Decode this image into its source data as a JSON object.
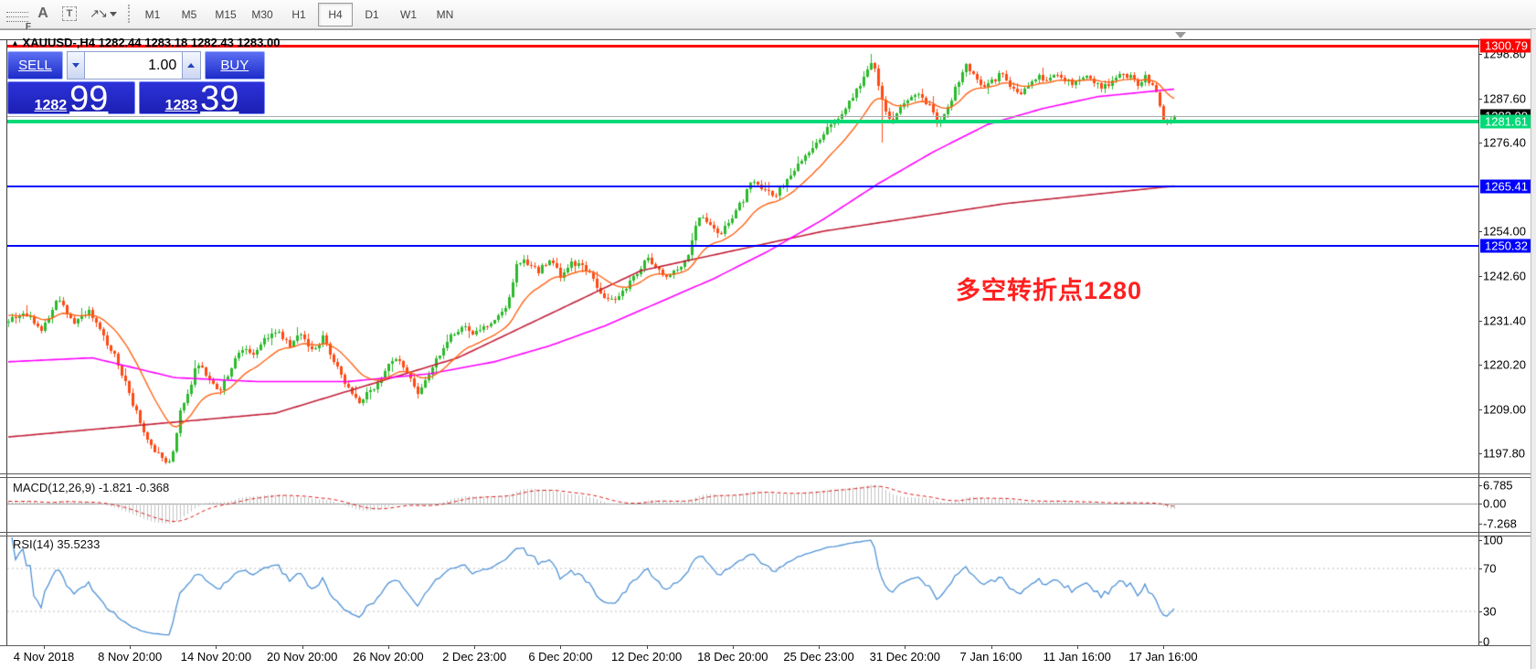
{
  "toolbar": {
    "tools": [
      {
        "name": "fibonacci",
        "glyph": "F"
      },
      {
        "name": "text",
        "glyph": "A"
      },
      {
        "name": "label",
        "glyph": "T"
      },
      {
        "name": "arrows",
        "glyph": "↗↘"
      }
    ],
    "timeframes": [
      "M1",
      "M5",
      "M15",
      "M30",
      "H1",
      "H4",
      "D1",
      "W1",
      "MN"
    ],
    "active_timeframe": "H4"
  },
  "header": {
    "symbol": "XAUUSD-,H4",
    "ohlc_text": "1282.44 1283.18 1282.43 1283.00"
  },
  "trade_panel": {
    "sell_label": "SELL",
    "buy_label": "BUY",
    "volume": "1.00",
    "sell_price_small": "1282",
    "sell_price_big": "99",
    "buy_price_small": "1283",
    "buy_price_big": "39"
  },
  "annotation": {
    "text": "多空转折点1280",
    "color": "#ff2020"
  },
  "price_axis": {
    "ticks": [
      "1298.80",
      "1287.60",
      "1276.40",
      "1254.00",
      "1242.60",
      "1231.40",
      "1220.20",
      "1209.00",
      "1197.80"
    ],
    "badges": [
      {
        "text": "1300.79",
        "price": 1300.79,
        "bg": "#ff0000",
        "fg": "#ffffff"
      },
      {
        "text": "1283.00",
        "price": 1283.0,
        "bg": "#000000",
        "fg": "#ffffff"
      },
      {
        "text": "1281.61",
        "price": 1281.61,
        "bg": "#00d977",
        "fg": "#ffffff"
      },
      {
        "text": "1265.41",
        "price": 1265.41,
        "bg": "#0000ff",
        "fg": "#ffffff"
      },
      {
        "text": "1250.32",
        "price": 1250.32,
        "bg": "#0000ff",
        "fg": "#ffffff"
      }
    ]
  },
  "time_axis": {
    "labels": [
      "4 Nov 2018",
      "8 Nov 20:00",
      "14 Nov 20:00",
      "20 Nov 20:00",
      "26 Nov 20:00",
      "2 Dec 23:00",
      "6 Dec 20:00",
      "12 Dec 20:00",
      "18 Dec 20:00",
      "25 Dec 23:00",
      "31 Dec 20:00",
      "7 Jan 16:00",
      "11 Jan 16:00",
      "17 Jan 16:00"
    ]
  },
  "indicators": {
    "macd": {
      "label": "MACD(12,26,9) -1.821 -0.368",
      "axis": [
        "6.785",
        "0.00",
        "-7.268"
      ]
    },
    "rsi": {
      "label": "RSI(14) 35.5233",
      "axis": [
        "100",
        "70",
        "30",
        "0"
      ]
    }
  },
  "chart_data": {
    "type": "candlestick",
    "symbol": "XAUUSD-",
    "timeframe": "H4",
    "title": "XAUUSD-,H4 1282.44 1283.18 1282.43 1283.00",
    "ohlc_current": {
      "open": 1282.44,
      "high": 1283.18,
      "low": 1282.43,
      "close": 1283.0
    },
    "bid": 1282.99,
    "ask": 1283.39,
    "y_axis": {
      "visible_min": 1192,
      "visible_max": 1305,
      "tick_values": [
        1298.8,
        1287.6,
        1276.4,
        1254.0,
        1242.6,
        1231.4,
        1220.2,
        1209.0,
        1197.8
      ]
    },
    "x_axis": {
      "labels": [
        "4 Nov 2018",
        "8 Nov 20:00",
        "14 Nov 20:00",
        "20 Nov 20:00",
        "26 Nov 20:00",
        "2 Dec 23:00",
        "6 Dec 20:00",
        "12 Dec 20:00",
        "18 Dec 20:00",
        "25 Dec 23:00",
        "31 Dec 20:00",
        "7 Jan 16:00",
        "11 Jan 16:00",
        "17 Jan 16:00"
      ]
    },
    "colors": {
      "up": "#2db92d",
      "down": "#ff4a14",
      "ma_fast": "#ff6316",
      "ma_medium": "#ff00ff",
      "ma_slow": "#c02038",
      "macd_hist": "#c2c2c2",
      "macd_signal": "#dd2222",
      "rsi_line": "#4f92d6",
      "level_dash": "#bbbbbb"
    },
    "price_path": [
      [
        8,
        1231
      ],
      [
        25,
        1234
      ],
      [
        45,
        1229
      ],
      [
        62,
        1237
      ],
      [
        80,
        1231
      ],
      [
        95,
        1234
      ],
      [
        110,
        1228
      ],
      [
        125,
        1222
      ],
      [
        140,
        1213
      ],
      [
        152,
        1206
      ],
      [
        163,
        1200
      ],
      [
        175,
        1197
      ],
      [
        186,
        1195
      ],
      [
        195,
        1208
      ],
      [
        205,
        1213
      ],
      [
        215,
        1221
      ],
      [
        228,
        1216
      ],
      [
        240,
        1214
      ],
      [
        252,
        1220
      ],
      [
        265,
        1225
      ],
      [
        278,
        1223
      ],
      [
        290,
        1227
      ],
      [
        302,
        1229
      ],
      [
        315,
        1225
      ],
      [
        328,
        1228
      ],
      [
        340,
        1224
      ],
      [
        352,
        1227
      ],
      [
        365,
        1221
      ],
      [
        378,
        1215
      ],
      [
        390,
        1211
      ],
      [
        402,
        1213
      ],
      [
        412,
        1216
      ],
      [
        425,
        1220
      ],
      [
        435,
        1222
      ],
      [
        448,
        1217
      ],
      [
        456,
        1213
      ],
      [
        468,
        1218
      ],
      [
        480,
        1223
      ],
      [
        492,
        1228
      ],
      [
        505,
        1230
      ],
      [
        518,
        1228
      ],
      [
        530,
        1230
      ],
      [
        542,
        1232
      ],
      [
        555,
        1236
      ],
      [
        565,
        1247
      ],
      [
        575,
        1246
      ],
      [
        588,
        1244
      ],
      [
        600,
        1247
      ],
      [
        612,
        1243
      ],
      [
        625,
        1246
      ],
      [
        638,
        1245
      ],
      [
        650,
        1241
      ],
      [
        662,
        1237
      ],
      [
        672,
        1236
      ],
      [
        684,
        1240
      ],
      [
        695,
        1243
      ],
      [
        708,
        1247
      ],
      [
        718,
        1244
      ],
      [
        730,
        1242
      ],
      [
        742,
        1245
      ],
      [
        752,
        1248
      ],
      [
        762,
        1258
      ],
      [
        772,
        1256
      ],
      [
        785,
        1253
      ],
      [
        798,
        1257
      ],
      [
        810,
        1261
      ],
      [
        822,
        1268
      ],
      [
        832,
        1264
      ],
      [
        845,
        1263
      ],
      [
        858,
        1266
      ],
      [
        870,
        1270
      ],
      [
        882,
        1274
      ],
      [
        895,
        1277
      ],
      [
        908,
        1281
      ],
      [
        920,
        1284
      ],
      [
        932,
        1288
      ],
      [
        945,
        1293
      ],
      [
        953,
        1297
      ],
      [
        960,
        1291
      ],
      [
        967,
        1284
      ],
      [
        975,
        1281
      ],
      [
        985,
        1286
      ],
      [
        995,
        1288
      ],
      [
        1005,
        1289
      ],
      [
        1015,
        1286
      ],
      [
        1025,
        1281
      ],
      [
        1035,
        1284
      ],
      [
        1045,
        1291
      ],
      [
        1055,
        1296
      ],
      [
        1065,
        1293
      ],
      [
        1075,
        1290
      ],
      [
        1085,
        1292
      ],
      [
        1095,
        1294
      ],
      [
        1105,
        1290
      ],
      [
        1115,
        1288
      ],
      [
        1125,
        1291
      ],
      [
        1135,
        1293
      ],
      [
        1145,
        1292
      ],
      [
        1155,
        1294
      ],
      [
        1165,
        1292
      ],
      [
        1175,
        1291
      ],
      [
        1185,
        1293
      ],
      [
        1195,
        1292
      ],
      [
        1205,
        1290
      ],
      [
        1215,
        1292
      ],
      [
        1225,
        1294
      ],
      [
        1235,
        1293
      ],
      [
        1245,
        1291
      ],
      [
        1252,
        1293
      ],
      [
        1260,
        1291
      ],
      [
        1266,
        1288
      ],
      [
        1270,
        1283
      ],
      [
        1275,
        1281
      ],
      [
        1280,
        1282
      ],
      [
        1287,
        1283
      ]
    ],
    "moving_averages": {
      "fast": {
        "type": "ema",
        "period": 16,
        "seed": 1233
      },
      "medium": {
        "path": [
          [
            8,
            1221
          ],
          [
            100,
            1222
          ],
          [
            190,
            1217
          ],
          [
            280,
            1216
          ],
          [
            380,
            1216
          ],
          [
            470,
            1218
          ],
          [
            540,
            1221
          ],
          [
            600,
            1225
          ],
          [
            660,
            1230
          ],
          [
            720,
            1236
          ],
          [
            780,
            1242
          ],
          [
            840,
            1249
          ],
          [
            900,
            1257
          ],
          [
            960,
            1266
          ],
          [
            1020,
            1274
          ],
          [
            1080,
            1281
          ],
          [
            1140,
            1285
          ],
          [
            1200,
            1288
          ],
          [
            1287,
            1290
          ]
        ]
      },
      "slow": {
        "path": [
          [
            8,
            1202
          ],
          [
            300,
            1208
          ],
          [
            500,
            1222
          ],
          [
            700,
            1244
          ],
          [
            900,
            1254
          ],
          [
            1100,
            1261
          ],
          [
            1287,
            1265.5
          ]
        ]
      }
    },
    "lines": [
      {
        "price": 1300.79,
        "color": "#ff0000",
        "thickness": 3
      },
      {
        "price": 1283.0,
        "color": "#aaaaaa",
        "thickness": 1
      },
      {
        "price": 1281.61,
        "color": "#00d977",
        "thickness": 4
      },
      {
        "price": 1265.41,
        "color": "#0000ff",
        "thickness": 2
      },
      {
        "price": 1250.32,
        "color": "#0000ff",
        "thickness": 2
      }
    ],
    "macd": {
      "params": "12,26,9",
      "current_macd": -1.821,
      "current_signal": -0.368,
      "axis_max": 6.785,
      "axis_min": -7.268
    },
    "rsi": {
      "period": 14,
      "current": 35.5233,
      "levels": [
        70,
        30
      ],
      "axis": [
        100,
        70,
        30,
        0
      ]
    }
  }
}
